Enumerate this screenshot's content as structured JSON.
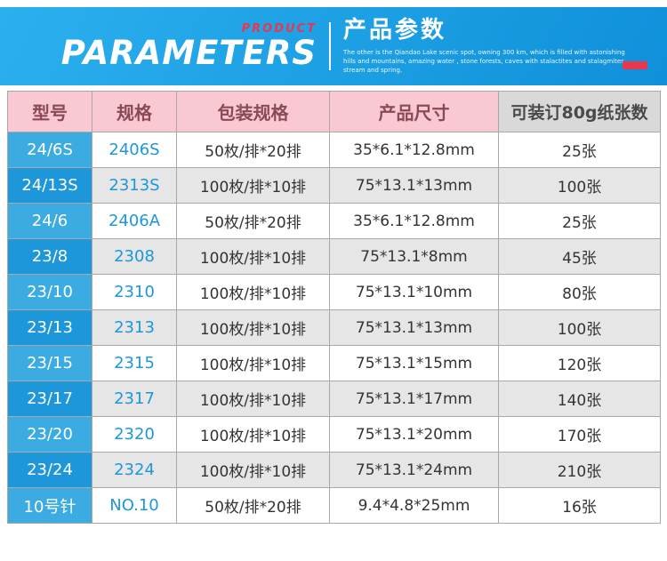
{
  "banner": {
    "product_label": "PRODUCT",
    "parameters_label": "PARAMETERS",
    "title_cn": "产品参数",
    "subtitle": "The other is the Qiandao Lake scenic spot, owning 300 km, which is filled with astonishing hills and mountains, amazing water , stone forests, caves with stalactites and stalagmites, stream and spring."
  },
  "table": {
    "headers": [
      "型号",
      "规格",
      "包装规格",
      "产品尺寸",
      "可装订80g纸张数"
    ],
    "rows": [
      [
        "24/6S",
        "2406S",
        "50枚/排*20排",
        "35*6.1*12.8mm",
        "25张"
      ],
      [
        "24/13S",
        "2313S",
        "100枚/排*10排",
        "75*13.1*13mm",
        "100张"
      ],
      [
        "24/6",
        "2406A",
        "50枚/排*20排",
        "35*6.1*12.8mm",
        "25张"
      ],
      [
        "23/8",
        "2308",
        "100枚/排*10排",
        "75*13.1*8mm",
        "45张"
      ],
      [
        "23/10",
        "2310",
        "100枚/排*10排",
        "75*13.1*10mm",
        "80张"
      ],
      [
        "23/13",
        "2313",
        "100枚/排*10排",
        "75*13.1*13mm",
        "100张"
      ],
      [
        "23/15",
        "2315",
        "100枚/排*10排",
        "75*13.1*15mm",
        "120张"
      ],
      [
        "23/17",
        "2317",
        "100枚/排*10排",
        "75*13.1*17mm",
        "140张"
      ],
      [
        "23/20",
        "2320",
        "100枚/排*10排",
        "75*13.1*20mm",
        "170张"
      ],
      [
        "23/24",
        "2324",
        "100枚/排*10排",
        "75*13.1*24mm",
        "210张"
      ],
      [
        "10号针",
        "NO.10",
        "50枚/排*20排",
        "9.4*4.8*25mm",
        "16张"
      ]
    ]
  },
  "colors": {
    "banner-blue-1": "#2bb0ee",
    "banner-blue-2": "#0f90da",
    "accent-red": "#e8374f",
    "header-pink": "#f9c8d3",
    "header-grey": "#d9d9d9",
    "model-light": "#3cabe2",
    "model-dark": "#1d97d9",
    "spec-blue": "#1d97d9",
    "stripe-grey": "#e6e6e6"
  }
}
